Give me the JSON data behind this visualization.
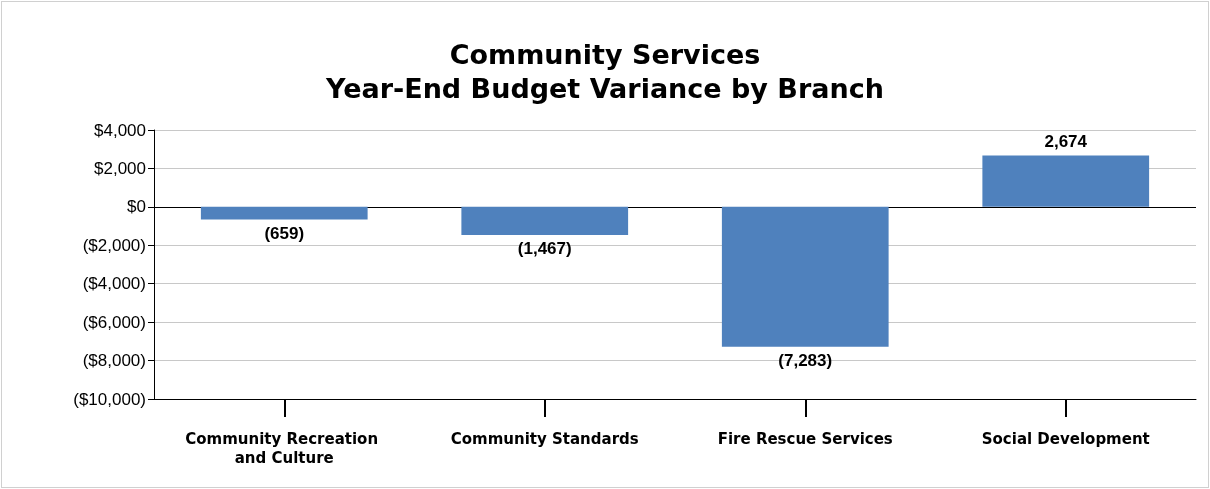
{
  "chart_data": {
    "type": "bar",
    "title": "Community Services\nYear-End Budget Variance by Branch",
    "categories": [
      "Community Recreation and Culture",
      "Community Standards",
      "Fire Rescue Services",
      "Social Development"
    ],
    "values": [
      -659,
      -1467,
      -7283,
      2674
    ],
    "value_labels": [
      "(659)",
      "(1,467)",
      "(7,283)",
      "2,674"
    ],
    "color": "#4f81bd",
    "ylim": [
      -10000,
      4000
    ],
    "yticks": [
      {
        "value": -10000,
        "label": "($10,000)"
      },
      {
        "value": -8000,
        "label": "($8,000)"
      },
      {
        "value": -6000,
        "label": "($6,000)"
      },
      {
        "value": -4000,
        "label": "($4,000)"
      },
      {
        "value": -2000,
        "label": "($2,000)"
      },
      {
        "value": 0,
        "label": "$0"
      },
      {
        "value": 2000,
        "label": "$2,000"
      },
      {
        "value": 4000,
        "label": "$4,000"
      }
    ],
    "grid": "y"
  }
}
